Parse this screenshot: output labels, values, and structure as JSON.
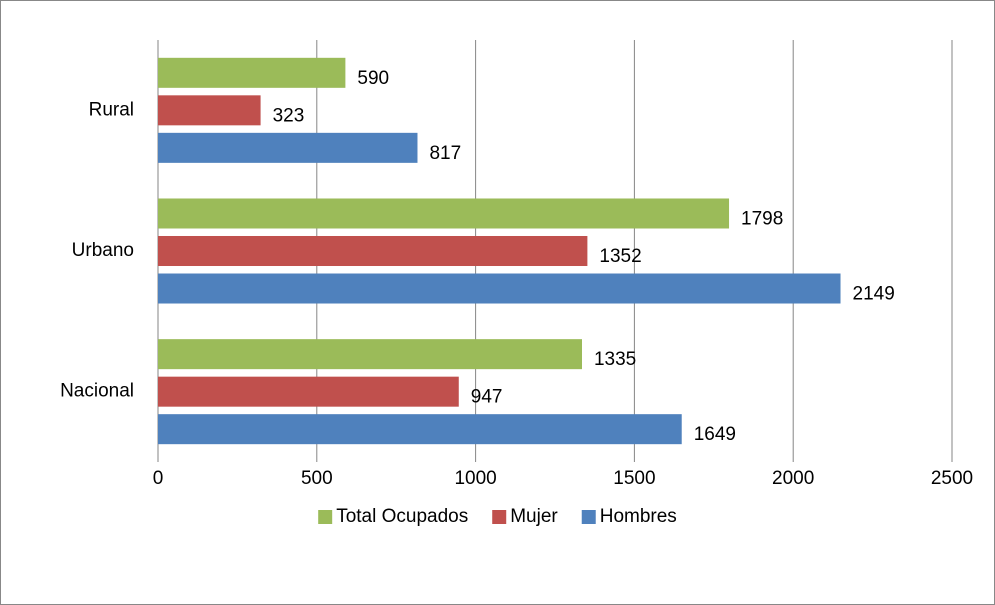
{
  "chart_data": {
    "type": "barh",
    "categories": [
      "Nacional",
      "Urbano",
      "Rural"
    ],
    "series": [
      {
        "name": "Total Ocupados",
        "color": "#9bbb59",
        "values": [
          1335,
          1798,
          590
        ]
      },
      {
        "name": "Mujer",
        "color": "#c0504d",
        "values": [
          947,
          1352,
          323
        ]
      },
      {
        "name": "Hombres",
        "color": "#4f81bd",
        "values": [
          1649,
          2149,
          817
        ]
      }
    ],
    "xlim": [
      0,
      2500
    ],
    "xticks": [
      0,
      500,
      1000,
      1500,
      2000,
      2500
    ],
    "grid": true,
    "legend": "bottom"
  }
}
